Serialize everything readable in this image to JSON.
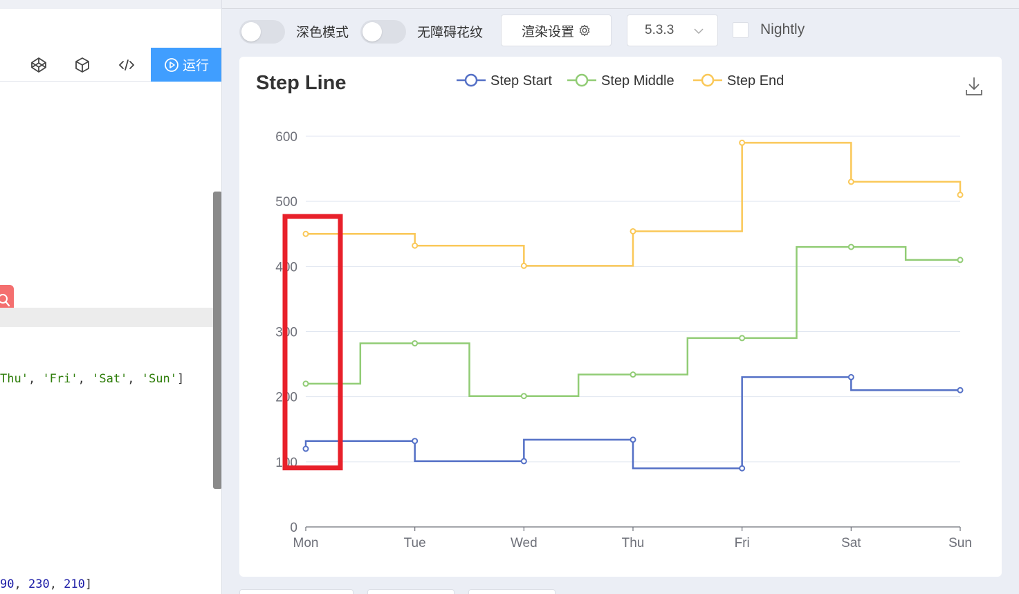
{
  "editor": {
    "toolbar": {
      "icons": [
        "codepen-icon",
        "box-icon",
        "code-icon"
      ],
      "run_label": "运行"
    },
    "code_lines": {
      "line1": {
        "pre": "",
        "items": [
          "Thu'",
          "'Fri'",
          "'Sat'",
          "'Sun'"
        ]
      },
      "line2": {
        "nums": [
          "90",
          "230",
          "210"
        ]
      }
    }
  },
  "controls": {
    "dark_mode_label": "深色模式",
    "accessibility_label": "无障碍花纹",
    "render_settings_label": "渲染设置",
    "version": "5.3.3",
    "nightly_label": "Nightly"
  },
  "chart_data": {
    "type": "line",
    "title": "Step Line",
    "categories": [
      "Mon",
      "Tue",
      "Wed",
      "Thu",
      "Fri",
      "Sat",
      "Sun"
    ],
    "ylim": [
      0,
      600
    ],
    "yticks": [
      0,
      100,
      200,
      300,
      400,
      500,
      600
    ],
    "grid": true,
    "legend_position": "top-center",
    "series": [
      {
        "name": "Step Start",
        "step": "start",
        "color": "#5470c6",
        "values": [
          120,
          132,
          101,
          134,
          90,
          230,
          210
        ]
      },
      {
        "name": "Step Middle",
        "step": "middle",
        "color": "#91cc75",
        "values": [
          220,
          282,
          201,
          234,
          290,
          430,
          410
        ]
      },
      {
        "name": "Step End",
        "step": "end",
        "color": "#fac858",
        "values": [
          450,
          432,
          401,
          454,
          590,
          530,
          510
        ]
      }
    ],
    "highlight_box_color": "#e8202a"
  }
}
